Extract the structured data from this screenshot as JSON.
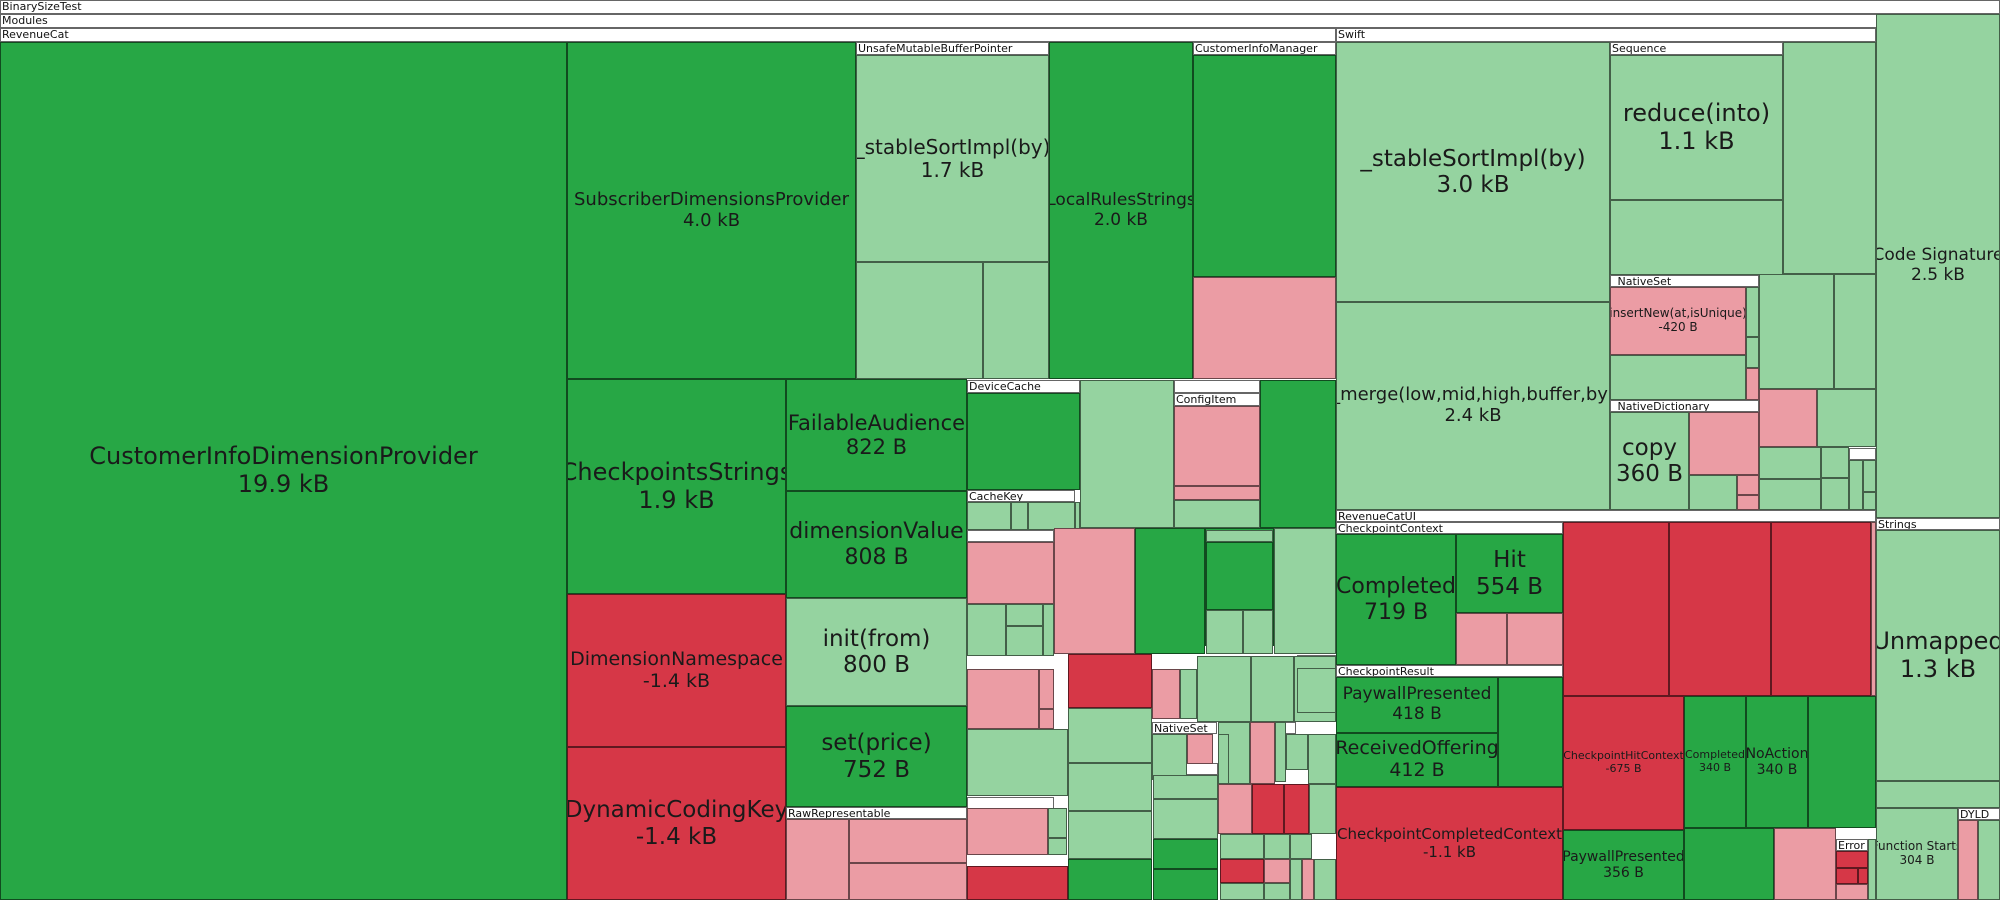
{
  "colors": {
    "growth_dark": "#27a745",
    "growth_light": "#95d3a0",
    "shrink_dark": "#d63747",
    "shrink_light": "#eb9ca4",
    "header_bg": "#ffffff"
  },
  "chart_data": {
    "type": "treemap",
    "title": "BinarySizeTest",
    "path": [
      "BinarySizeTest",
      "Modules"
    ],
    "groups": [
      {
        "name": "BinarySizeTest"
      },
      {
        "name": "Modules"
      },
      {
        "name": "RevenueCat"
      },
      {
        "name": "UnsafeMutableBufferPointer"
      },
      {
        "name": "CustomerInfoManager"
      },
      {
        "name": "DeviceCache"
      },
      {
        "name": "ConfigItem"
      },
      {
        "name": "CacheKey"
      },
      {
        "name": "RawRepresentable"
      },
      {
        "name": "NativeSet"
      },
      {
        "name": "Swift"
      },
      {
        "name": "Sequence"
      },
      {
        "name": "_NativeSet"
      },
      {
        "name": "_NativeDictionary"
      },
      {
        "name": "RevenueCatUI"
      },
      {
        "name": "CheckpointContext"
      },
      {
        "name": "CheckpointResult"
      },
      {
        "name": "Error"
      },
      {
        "name": "Strings"
      },
      {
        "name": "DYLD"
      }
    ],
    "labeled_items": [
      {
        "label": "CustomerInfoDimensionProvider",
        "value": "19.9 kB"
      },
      {
        "label": "SubscriberDimensionsProvider",
        "value": "4.0 kB"
      },
      {
        "label": "_stableSortImpl(by)",
        "value": "1.7 kB"
      },
      {
        "label": "LocalRulesStrings",
        "value": "2.0 kB"
      },
      {
        "label": "CheckpointsStrings",
        "value": "1.9 kB"
      },
      {
        "label": "FailableAudience",
        "value": "822 B"
      },
      {
        "label": "dimensionValue",
        "value": "808 B"
      },
      {
        "label": "init(from)",
        "value": "800 B"
      },
      {
        "label": "set(price)",
        "value": "752 B"
      },
      {
        "label": "DimensionNamespace",
        "value": "-1.4 kB"
      },
      {
        "label": "DynamicCodingKey",
        "value": "-1.4 kB"
      },
      {
        "label": "_stableSortImpl(by)",
        "value": "3.0 kB"
      },
      {
        "label": "_merge(low,mid,high,buffer,by)",
        "value": "2.4 kB"
      },
      {
        "label": "reduce(into)",
        "value": "1.1 kB"
      },
      {
        "label": "insertNew(at,isUnique)",
        "value": "-420 B"
      },
      {
        "label": "copy",
        "value": "360 B"
      },
      {
        "label": "Code Signature",
        "value": "2.5 kB"
      },
      {
        "label": "Completed",
        "value": "719 B"
      },
      {
        "label": "Hit",
        "value": "554 B"
      },
      {
        "label": "PaywallPresented",
        "value": "418 B"
      },
      {
        "label": "ReceivedOffering",
        "value": "412 B"
      },
      {
        "label": "CheckpointCompletedContext",
        "value": "-1.1 kB"
      },
      {
        "label": "CheckpointHitContext",
        "value": "-675 B"
      },
      {
        "label": "Completed",
        "value": "340 B"
      },
      {
        "label": "NoAction",
        "value": "340 B"
      },
      {
        "label": "PaywallPresented",
        "value": "356 B"
      },
      {
        "label": "Unmapped",
        "value": "1.3 kB"
      },
      {
        "label": "Function Starts",
        "value": "304 B"
      }
    ]
  }
}
